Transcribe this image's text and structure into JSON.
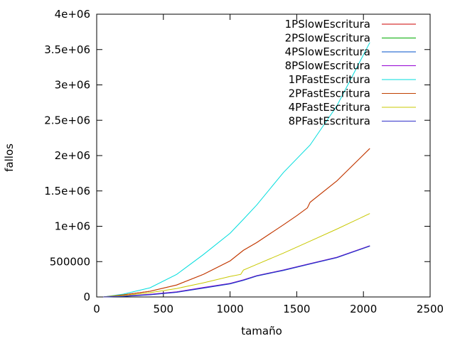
{
  "chart_data": {
    "type": "line",
    "xlabel": "tamaño",
    "ylabel": "fallos",
    "xlim": [
      0,
      2500
    ],
    "ylim": [
      0,
      4000000
    ],
    "x_ticks": [
      0,
      500,
      1000,
      1500,
      2000,
      2500
    ],
    "x_tick_labels": [
      "0",
      "500",
      "1000",
      "1500",
      "2000",
      "2500"
    ],
    "y_ticks": [
      0,
      500000,
      1000000,
      1500000,
      2000000,
      2500000,
      3000000,
      3500000,
      4000000
    ],
    "y_tick_labels": [
      "0",
      "500000",
      "1e+06",
      "1.5e+06",
      "2e+06",
      "2.5e+06",
      "3e+06",
      "3.5e+06",
      "4e+06"
    ],
    "grid": false,
    "legend_position": "top-right",
    "series": [
      {
        "name": "1PSlowEscritura",
        "color": "#cc0000",
        "x": [
          50,
          200,
          400,
          600,
          800,
          1000,
          1100,
          1200,
          1400,
          1500,
          1580,
          1600,
          1800,
          2048
        ],
        "y": [
          0,
          30000,
          80000,
          170000,
          320000,
          510000,
          660000,
          770000,
          1020000,
          1150000,
          1260000,
          1340000,
          1640000,
          2100000
        ]
      },
      {
        "name": "2PSlowEscritura",
        "color": "#00aa00",
        "x": [
          50,
          200,
          400,
          600,
          800,
          1000,
          1100,
          1200,
          1400,
          1600,
          1800,
          2048
        ],
        "y": [
          0,
          10000,
          35000,
          70000,
          130000,
          190000,
          240000,
          300000,
          380000,
          470000,
          560000,
          720000
        ]
      },
      {
        "name": "4PSlowEscritura",
        "color": "#0050c8",
        "x": [
          50,
          200,
          400,
          600,
          800,
          1000,
          1100,
          1200,
          1400,
          1600,
          1800,
          2048
        ],
        "y": [
          0,
          8000,
          30000,
          65000,
          125000,
          185000,
          235000,
          295000,
          375000,
          465000,
          555000,
          720000
        ]
      },
      {
        "name": "8PSlowEscritura",
        "color": "#9400d3",
        "x": [
          50,
          200,
          400,
          600,
          800,
          1000,
          1100,
          1200,
          1400,
          1600,
          1800,
          2048
        ],
        "y": [
          0,
          12000,
          38000,
          72000,
          135000,
          192000,
          242000,
          302000,
          382000,
          472000,
          562000,
          725000
        ]
      },
      {
        "name": "1PFastEscritura",
        "color": "#00dddd",
        "x": [
          50,
          200,
          400,
          600,
          800,
          1000,
          1100,
          1200,
          1400,
          1600,
          1800,
          2048
        ],
        "y": [
          0,
          40000,
          130000,
          320000,
          600000,
          900000,
          1100000,
          1300000,
          1760000,
          2150000,
          2700000,
          3600000
        ]
      },
      {
        "name": "2PFastEscritura",
        "color": "#c04000",
        "x": [
          50,
          200,
          400,
          600,
          800,
          1000,
          1100,
          1200,
          1400,
          1500,
          1580,
          1600,
          1800,
          2048
        ],
        "y": [
          0,
          30000,
          80000,
          170000,
          320000,
          510000,
          660000,
          770000,
          1020000,
          1150000,
          1260000,
          1340000,
          1640000,
          2100000
        ]
      },
      {
        "name": "4PFastEscritura",
        "color": "#c8c800",
        "x": [
          50,
          200,
          400,
          600,
          800,
          1000,
          1080,
          1100,
          1200,
          1400,
          1600,
          1800,
          2048
        ],
        "y": [
          0,
          20000,
          60000,
          120000,
          200000,
          290000,
          320000,
          380000,
          460000,
          620000,
          790000,
          960000,
          1180000
        ]
      },
      {
        "name": "8PFastEscritura",
        "color": "#3030c8",
        "x": [
          50,
          200,
          400,
          600,
          800,
          1000,
          1100,
          1200,
          1400,
          1600,
          1800,
          2048
        ],
        "y": [
          0,
          10000,
          32000,
          68000,
          128000,
          188000,
          238000,
          298000,
          378000,
          468000,
          558000,
          722000
        ]
      }
    ]
  }
}
